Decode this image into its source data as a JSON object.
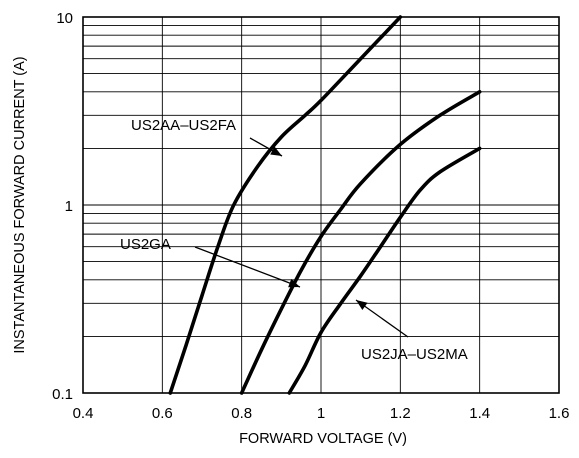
{
  "chart_data": {
    "type": "line",
    "title": "",
    "xlabel": "FORWARD VOLTAGE (V)",
    "ylabel": "INSTANTANEOUS FORWARD CURRENT (A)",
    "xlim": [
      0.4,
      1.6
    ],
    "ylim": [
      0.1,
      10
    ],
    "yscale": "log",
    "grid": true,
    "x_ticks": [
      "0.4",
      "0.6",
      "0.8",
      "1",
      "1.2",
      "1.4",
      "1.6"
    ],
    "y_ticks": [
      "0.1",
      "1",
      "10"
    ],
    "series": [
      {
        "name": "US2AA–US2FA",
        "x": [
          0.62,
          0.66,
          0.7,
          0.74,
          0.78,
          0.84,
          0.9,
          0.96,
          1.0,
          1.1,
          1.2
        ],
        "y": [
          0.1,
          0.18,
          0.33,
          0.6,
          1.0,
          1.6,
          2.3,
          3.0,
          3.6,
          6.0,
          10.0
        ]
      },
      {
        "name": "US2GA",
        "x": [
          0.8,
          0.85,
          0.9,
          0.95,
          1.0,
          1.05,
          1.1,
          1.2,
          1.3,
          1.4
        ],
        "y": [
          0.1,
          0.17,
          0.28,
          0.45,
          0.68,
          0.95,
          1.3,
          2.1,
          3.0,
          4.0
        ]
      },
      {
        "name": "US2JA–US2MA",
        "x": [
          0.92,
          0.96,
          1.0,
          1.05,
          1.1,
          1.15,
          1.2,
          1.25,
          1.3,
          1.4
        ],
        "y": [
          0.1,
          0.14,
          0.21,
          0.3,
          0.42,
          0.6,
          0.86,
          1.2,
          1.5,
          2.0
        ]
      }
    ],
    "annotations": [
      {
        "text": "US2AA–US2FA",
        "points_to_series": 0
      },
      {
        "text": "US2GA",
        "points_to_series": 1
      },
      {
        "text": "US2JA–US2MA",
        "points_to_series": 2
      }
    ]
  }
}
